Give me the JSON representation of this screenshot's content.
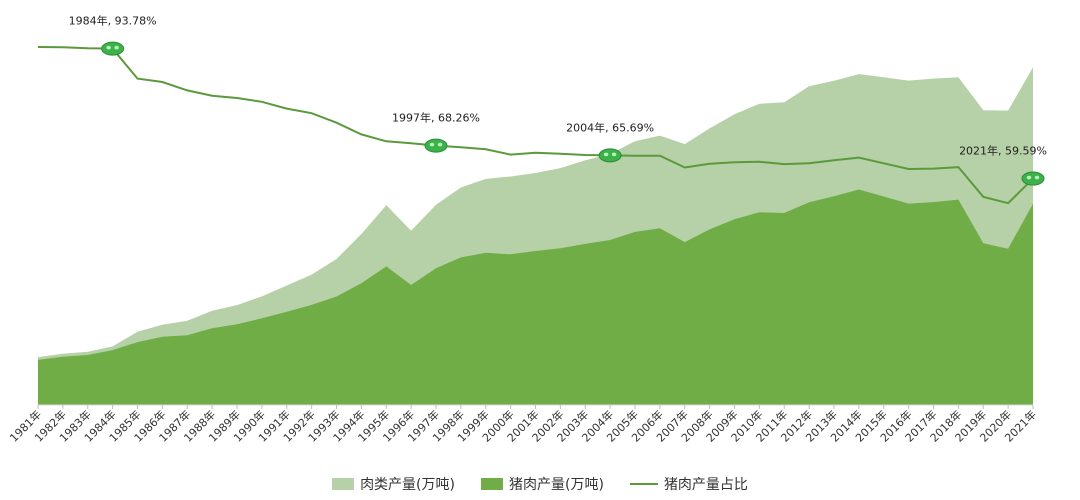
{
  "chart_data": {
    "type": "area",
    "categories": [
      "1981年",
      "1982年",
      "1983年",
      "1984年",
      "1985年",
      "1986年",
      "1987年",
      "1988年",
      "1989年",
      "1990年",
      "1991年",
      "1992年",
      "1993年",
      "1994年",
      "1995年",
      "1996年",
      "1997年",
      "1998年",
      "1999年",
      "2000年",
      "2001年",
      "2002年",
      "2003年",
      "2004年",
      "2005年",
      "2006年",
      "2007年",
      "2008年",
      "2009年",
      "2010年",
      "2011年",
      "2012年",
      "2013年",
      "2014年",
      "2015年",
      "2016年",
      "2017年",
      "2018年",
      "2019年",
      "2020年",
      "2021年"
    ],
    "series": [
      {
        "name": "肉类产量(万吨)",
        "kind": "area",
        "color": "#b6d0a7",
        "values": [
          1261,
          1351,
          1402,
          1541,
          1927,
          2112,
          2216,
          2480,
          2628,
          2857,
          3144,
          3431,
          3842,
          4499,
          5260,
          4584,
          5269,
          5724,
          5949,
          6014,
          6106,
          6234,
          6443,
          6609,
          6939,
          7089,
          6866,
          7279,
          7650,
          7926,
          7965,
          8387,
          8535,
          8707,
          8625,
          8538,
          8589,
          8625,
          7759,
          7748,
          8887
        ]
      },
      {
        "name": "猪肉产量(万吨)",
        "kind": "area",
        "color": "#70ad47",
        "values": [
          1188,
          1272,
          1316,
          1445,
          1655,
          1796,
          1835,
          2018,
          2123,
          2281,
          2452,
          2635,
          2854,
          3205,
          3648,
          3158,
          3597,
          3884,
          4006,
          3966,
          4052,
          4123,
          4239,
          4341,
          4555,
          4650,
          4288,
          4621,
          4890,
          5071,
          5053,
          5335,
          5493,
          5671,
          5487,
          5299,
          5340,
          5404,
          4255,
          4113,
          5296
        ]
      },
      {
        "name": "猪肉产量占比",
        "kind": "line",
        "color": "#5a9a3c",
        "values": [
          94.2,
          94.15,
          93.9,
          93.78,
          85.9,
          85.0,
          82.8,
          81.4,
          80.8,
          79.8,
          78.0,
          76.8,
          74.3,
          71.2,
          69.4,
          68.9,
          68.26,
          67.85,
          67.3,
          65.9,
          66.36,
          66.1,
          65.8,
          65.69,
          65.6,
          65.6,
          62.5,
          63.5,
          63.9,
          64.0,
          63.4,
          63.6,
          64.4,
          65.1,
          63.6,
          62.1,
          62.2,
          62.6,
          54.8,
          53.1,
          59.59
        ]
      }
    ],
    "annotations": [
      {
        "index": 3,
        "label": "1984年, 93.78%"
      },
      {
        "index": 16,
        "label": "1997年, 68.26%"
      },
      {
        "index": 23,
        "label": "2004年, 65.69%"
      },
      {
        "index": 40,
        "label": "2021年, 59.59%"
      }
    ],
    "left_range": [
      0,
      10000
    ],
    "right_range": [
      0,
      100
    ],
    "grid": false,
    "legend_position": "bottom"
  }
}
